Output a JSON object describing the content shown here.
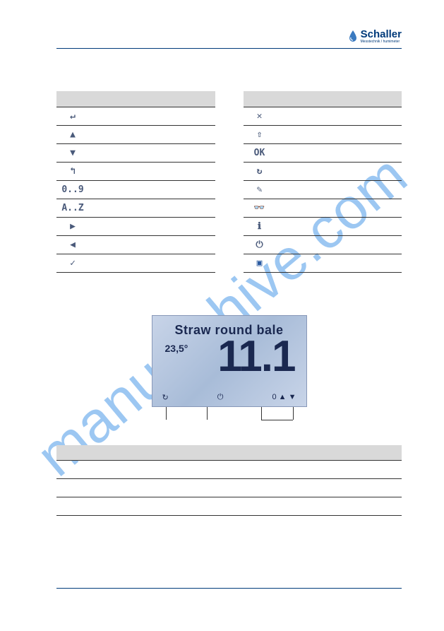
{
  "brand": {
    "name": "Schaller",
    "tagline": "Messtechnik / humimeter"
  },
  "watermark": "manualshive.com",
  "left_icons": [
    {
      "name": "enter-icon",
      "glyph": "↵"
    },
    {
      "name": "up-triangle-icon",
      "glyph": "▲"
    },
    {
      "name": "down-triangle-icon",
      "glyph": "▼"
    },
    {
      "name": "back-arrow-icon",
      "glyph": "↰"
    },
    {
      "name": "digits-icon",
      "glyph": "0..9"
    },
    {
      "name": "letters-icon",
      "glyph": "A..Z"
    },
    {
      "name": "right-arrow-icon",
      "glyph": "▶"
    },
    {
      "name": "left-arrow-icon",
      "glyph": "◀"
    },
    {
      "name": "check-icon",
      "glyph": "✓"
    }
  ],
  "right_icons": [
    {
      "name": "cancel-icon",
      "glyph": "✕"
    },
    {
      "name": "shift-up-icon",
      "glyph": "⇧"
    },
    {
      "name": "ok-icon",
      "glyph": "OK"
    },
    {
      "name": "rotate-icon",
      "glyph": "↻"
    },
    {
      "name": "edit-icon",
      "glyph": "✎"
    },
    {
      "name": "glasses-icon",
      "glyph": "👓"
    },
    {
      "name": "info-icon",
      "glyph": "ℹ"
    },
    {
      "name": "power-icon",
      "glyph": "⏻"
    },
    {
      "name": "save-icon",
      "glyph": "💾"
    }
  ],
  "lcd": {
    "title": "Straw round bale",
    "temperature": "23,5°",
    "value": "11.1",
    "bottom_left": "↻",
    "bottom_mid": "⏻",
    "bottom_right": "0 ▲      ▼"
  },
  "pointer_rows": [
    {
      "num": ""
    },
    {
      "num": ""
    },
    {
      "num": ""
    }
  ]
}
